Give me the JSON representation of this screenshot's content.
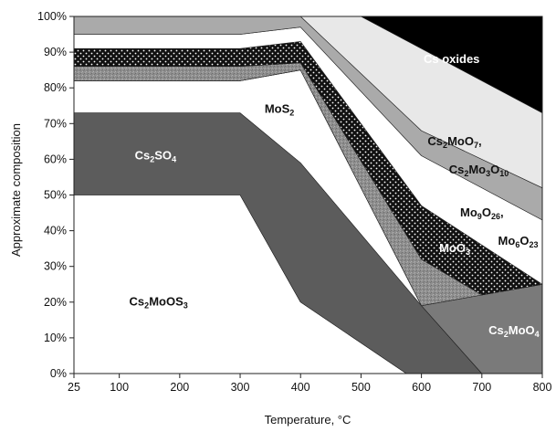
{
  "chart_data": {
    "type": "area",
    "title": "",
    "xlabel": "Temperature, °C",
    "ylabel": "Approximate composition",
    "x": [
      25,
      300,
      400,
      600,
      700,
      800
    ],
    "xlim": [
      25,
      800
    ],
    "ylim": [
      0,
      100
    ],
    "x_ticks": [
      "25",
      "100",
      "200",
      "300",
      "400",
      "500",
      "600",
      "700",
      "800"
    ],
    "y_ticks": [
      "0%",
      "10%",
      "20%",
      "30%",
      "40%",
      "50%",
      "60%",
      "70%",
      "80%",
      "90%",
      "100%"
    ],
    "grid": false,
    "legend": "none (regions labelled in place)",
    "regions": [
      {
        "name": "Cs2MoOS3",
        "label_parts": [
          [
            "Cs",
            ""
          ],
          [
            "2",
            "sub"
          ],
          [
            "MoOS",
            ""
          ],
          [
            "3",
            "sub"
          ]
        ],
        "fill": "#ffffff",
        "upper": [
          [
            25,
            50
          ],
          [
            300,
            50
          ],
          [
            400,
            20
          ],
          [
            575,
            0
          ],
          [
            800,
            0
          ]
        ],
        "lower": [
          [
            25,
            0
          ],
          [
            800,
            0
          ]
        ]
      },
      {
        "name": "Cs2SO4",
        "label_parts": [
          [
            "Cs",
            ""
          ],
          [
            "2",
            "sub"
          ],
          [
            "SO",
            ""
          ],
          [
            "4",
            "sub"
          ]
        ],
        "fill": "#5c5c5c",
        "upper": [
          [
            25,
            73
          ],
          [
            300,
            73
          ],
          [
            400,
            59
          ],
          [
            600,
            19
          ],
          [
            700,
            0
          ],
          [
            800,
            0
          ]
        ],
        "lower": [
          [
            25,
            50
          ],
          [
            300,
            50
          ],
          [
            400,
            20
          ],
          [
            575,
            0
          ],
          [
            800,
            0
          ]
        ]
      },
      {
        "name": "MoS2",
        "label_parts": [
          [
            "MoS",
            ""
          ],
          [
            "2",
            "sub"
          ]
        ],
        "fill": "#ffffff",
        "upper": [
          [
            25,
            82
          ],
          [
            300,
            82
          ],
          [
            400,
            85
          ],
          [
            600,
            19
          ],
          [
            700,
            0
          ],
          [
            800,
            0
          ]
        ],
        "lower": [
          [
            25,
            73
          ],
          [
            300,
            73
          ],
          [
            400,
            59
          ],
          [
            600,
            19
          ],
          [
            700,
            0
          ],
          [
            800,
            0
          ]
        ]
      },
      {
        "name": "Cs2MoO4",
        "label_parts": [
          [
            "Cs",
            ""
          ],
          [
            "2",
            "sub"
          ],
          [
            "MoO",
            ""
          ],
          [
            "4",
            "sub"
          ]
        ],
        "fill": "#7a7a7a",
        "upper": [
          [
            25,
            82
          ],
          [
            300,
            82
          ],
          [
            400,
            85
          ],
          [
            600,
            19
          ],
          [
            700,
            22
          ],
          [
            800,
            25
          ]
        ],
        "lower": [
          [
            25,
            82
          ],
          [
            300,
            82
          ],
          [
            400,
            85
          ],
          [
            600,
            19
          ],
          [
            700,
            0
          ],
          [
            800,
            0
          ]
        ]
      },
      {
        "name": "MoO3",
        "label_parts": [
          [
            "MoO",
            ""
          ],
          [
            "3",
            "sub"
          ]
        ],
        "fill": "#9a9a9a",
        "upper": [
          [
            25,
            86
          ],
          [
            300,
            86
          ],
          [
            400,
            87
          ],
          [
            600,
            32
          ],
          [
            700,
            22
          ],
          [
            800,
            25
          ]
        ],
        "lower": [
          [
            25,
            82
          ],
          [
            300,
            82
          ],
          [
            400,
            85
          ],
          [
            600,
            19
          ],
          [
            700,
            22
          ],
          [
            800,
            25
          ]
        ]
      },
      {
        "name": "Mo6O23",
        "label_parts": [
          [
            "Mo",
            ""
          ],
          [
            "6",
            "sub"
          ],
          [
            "O",
            ""
          ],
          [
            "23",
            "sub"
          ]
        ],
        "fill": "#111111",
        "upper": [
          [
            25,
            91
          ],
          [
            300,
            91
          ],
          [
            400,
            93
          ],
          [
            600,
            47
          ],
          [
            700,
            36
          ],
          [
            800,
            25
          ]
        ],
        "lower": [
          [
            25,
            86
          ],
          [
            300,
            86
          ],
          [
            400,
            87
          ],
          [
            600,
            32
          ],
          [
            700,
            22
          ],
          [
            800,
            25
          ]
        ]
      },
      {
        "name": "Mo9O26",
        "label_parts": [
          [
            "Mo",
            ""
          ],
          [
            "9",
            "sub"
          ],
          [
            "O",
            ""
          ],
          [
            "26",
            "sub"
          ],
          [
            ",",
            ""
          ]
        ],
        "fill": "#ffffff",
        "upper": [
          [
            25,
            95
          ],
          [
            300,
            95
          ],
          [
            400,
            97
          ],
          [
            600,
            61
          ],
          [
            800,
            43
          ]
        ],
        "lower": [
          [
            25,
            91
          ],
          [
            300,
            91
          ],
          [
            400,
            93
          ],
          [
            600,
            47
          ],
          [
            700,
            36
          ],
          [
            800,
            25
          ]
        ]
      },
      {
        "name": "Cs2Mo3O10",
        "label_parts": [
          [
            "Cs",
            ""
          ],
          [
            "2",
            "sub"
          ],
          [
            "Mo",
            ""
          ],
          [
            "3",
            "sub"
          ],
          [
            "O",
            ""
          ],
          [
            "10",
            "sub"
          ]
        ],
        "fill": "#aaaaaa",
        "upper": [
          [
            25,
            100
          ],
          [
            400,
            100
          ],
          [
            600,
            68
          ],
          [
            800,
            52
          ]
        ],
        "lower": [
          [
            25,
            95
          ],
          [
            300,
            95
          ],
          [
            400,
            97
          ],
          [
            600,
            61
          ],
          [
            800,
            43
          ]
        ]
      },
      {
        "name": "Cs2MoO7",
        "label_parts": [
          [
            "Cs",
            ""
          ],
          [
            "2",
            "sub"
          ],
          [
            "MoO",
            ""
          ],
          [
            "7",
            "sub"
          ],
          [
            ",",
            ""
          ]
        ],
        "fill": "#e8e8e8",
        "upper": [
          [
            25,
            100
          ],
          [
            400,
            100
          ],
          [
            500,
            100
          ],
          [
            800,
            73
          ]
        ],
        "lower": [
          [
            25,
            100
          ],
          [
            400,
            100
          ],
          [
            600,
            68
          ],
          [
            800,
            52
          ]
        ]
      },
      {
        "name": "Cs oxides",
        "label_parts": [
          [
            "Cs oxides",
            ""
          ]
        ],
        "fill": "#000000",
        "upper": [
          [
            25,
            100
          ],
          [
            400,
            100
          ],
          [
            800,
            100
          ]
        ],
        "lower": [
          [
            25,
            100
          ],
          [
            400,
            100
          ],
          [
            500,
            100
          ],
          [
            800,
            73
          ]
        ]
      }
    ],
    "labels": [
      {
        "region": "Cs oxides",
        "x": 650,
        "y": 87,
        "color": "#ffffff"
      },
      {
        "region": "Cs2MoO7",
        "x": 655,
        "y": 64,
        "color": "#111111"
      },
      {
        "region": "Cs2Mo3O10",
        "x": 695,
        "y": 56,
        "color": "#111111"
      },
      {
        "region": "Mo9O26",
        "x": 700,
        "y": 44,
        "color": "#111111"
      },
      {
        "region": "Mo6O23",
        "x": 760,
        "y": 36,
        "color": "#111111"
      },
      {
        "region": "MoO3",
        "x": 655,
        "y": 34,
        "color": "#ffffff"
      },
      {
        "region": "Cs2MoO4",
        "x": 753,
        "y": 11,
        "color": "#ffffff"
      },
      {
        "region": "MoS2",
        "x": 365,
        "y": 73,
        "color": "#111111"
      },
      {
        "region": "Cs2SO4",
        "x": 160,
        "y": 60,
        "color": "#ffffff"
      },
      {
        "region": "Cs2MoOS3",
        "x": 165,
        "y": 19,
        "color": "#111111"
      }
    ]
  }
}
